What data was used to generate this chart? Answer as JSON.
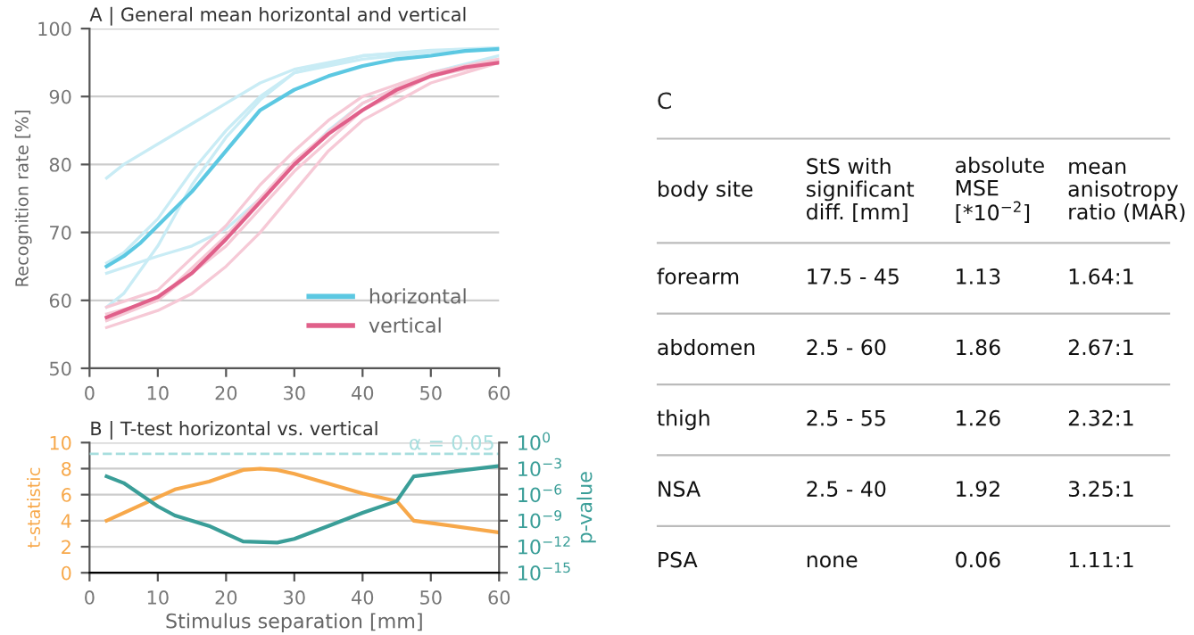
{
  "chart_data": [
    {
      "type": "line",
      "title": "A | General mean horizontal and vertical",
      "ylabel": "Recognition rate [%]",
      "xlim": [
        0,
        60
      ],
      "xticks": [
        0,
        10,
        20,
        30,
        40,
        50,
        60
      ],
      "ylim": [
        50,
        100
      ],
      "yticks": [
        50,
        60,
        70,
        80,
        90,
        100
      ],
      "grid": "y",
      "legend": "bottom right",
      "series": [
        {
          "color": "#c9ecf5",
          "x": [
            2.5,
            5,
            10,
            15,
            20,
            25,
            30,
            35,
            40,
            50,
            60
          ],
          "values": [
            78,
            80,
            83,
            86,
            89,
            92,
            94,
            95,
            96,
            96.7,
            97
          ]
        },
        {
          "color": "#c9ecf5",
          "x": [
            2.5,
            5,
            10,
            15,
            20,
            25,
            30,
            40,
            50,
            60
          ],
          "values": [
            65.5,
            67,
            72,
            79,
            85,
            90,
            93.5,
            96,
            96.8,
            97.2
          ]
        },
        {
          "color": "#c9ecf5",
          "x": [
            2.5,
            5,
            10,
            15,
            20,
            25,
            30,
            40,
            50,
            60
          ],
          "values": [
            59,
            61,
            68,
            77,
            84,
            89.5,
            93.5,
            95.5,
            96.5,
            97
          ]
        },
        {
          "color": "#c9ecf5",
          "x": [
            2.5,
            10,
            15,
            20,
            25,
            30,
            35,
            40,
            50,
            60
          ],
          "values": [
            64,
            66.5,
            68,
            70.5,
            75,
            80,
            85,
            89,
            93.5,
            96
          ]
        },
        {
          "color": "#f6c9d6",
          "x": [
            2.5,
            10,
            20,
            25,
            30,
            35,
            40,
            50,
            60
          ],
          "values": [
            59,
            61.5,
            71,
            77,
            82,
            86.5,
            90,
            93.5,
            95.5
          ]
        },
        {
          "color": "#f6c9d6",
          "x": [
            2.5,
            10,
            20,
            30,
            40,
            50,
            60
          ],
          "values": [
            58,
            60,
            68,
            79,
            88,
            93,
            95
          ]
        },
        {
          "color": "#f6c9d6",
          "x": [
            2.5,
            10,
            15,
            20,
            25,
            30,
            35,
            40,
            50,
            60
          ],
          "values": [
            56,
            58.5,
            61,
            65,
            70,
            76,
            82,
            86.5,
            92,
            95
          ]
        },
        {
          "color": "#f6c9d6",
          "x": [
            2.5,
            10,
            20,
            30,
            40,
            50,
            60
          ],
          "values": [
            57,
            60,
            69.5,
            80.5,
            89,
            93.5,
            95.5
          ]
        },
        {
          "name": "horizontal",
          "color": "#5cc8e2",
          "x": [
            2.5,
            5,
            7.5,
            10,
            15,
            20,
            25,
            30,
            35,
            40,
            45,
            50,
            55,
            60
          ],
          "values": [
            65,
            66.5,
            68.5,
            71,
            76,
            82,
            88,
            91,
            93,
            94.5,
            95.5,
            96,
            96.7,
            97
          ]
        },
        {
          "name": "vertical",
          "color": "#e0608a",
          "x": [
            2.5,
            5,
            7.5,
            10,
            15,
            20,
            25,
            30,
            35,
            40,
            45,
            50,
            55,
            60
          ],
          "values": [
            57.5,
            58.5,
            59.5,
            60.5,
            64,
            69,
            74.5,
            80,
            84.5,
            88,
            91,
            93,
            94.3,
            95
          ]
        }
      ]
    },
    {
      "type": "line",
      "title": "B | T-test horizontal vs. vertical",
      "xlabel": "Stimulus separation [mm]",
      "ylabel": "t-statistic",
      "y2label": "p-value",
      "xlim": [
        0,
        60
      ],
      "xticks": [
        0,
        10,
        20,
        30,
        40,
        50,
        60
      ],
      "ylim": [
        0,
        10
      ],
      "yticks": [
        0,
        2,
        4,
        6,
        8,
        10
      ],
      "log": "y2",
      "y2lim": [
        1e-15,
        1
      ],
      "y2ticks": [
        {
          "value": 1,
          "label": "10$^{0}$"
        },
        {
          "value": 0.001,
          "label": "10$^{−3}$"
        },
        {
          "value": 1e-06,
          "label": "10$^{−6}$"
        },
        {
          "value": 1e-09,
          "label": "10$^{−9}$"
        },
        {
          "value": 1e-12,
          "label": "10$^{−12}$"
        },
        {
          "value": 1e-15,
          "label": "10$^{−15}$"
        }
      ],
      "grid": "y",
      "ref_lines": [
        {
          "axis": "y2",
          "value": 0.05,
          "label": "α = 0.05",
          "color": "#a8dede",
          "line_style": "dashed"
        }
      ],
      "series": [
        {
          "color": "#f7a84a",
          "x": [
            2.5,
            5,
            10,
            12.5,
            17.5,
            22.5,
            25,
            27.5,
            30,
            40,
            45,
            47.5,
            60
          ],
          "values": [
            4,
            4.6,
            5.8,
            6.4,
            7,
            7.9,
            8,
            7.9,
            7.6,
            6.1,
            5.5,
            4,
            3.1
          ]
        },
        {
          "axis": "y2",
          "color": "#3a9e98",
          "x": [
            2.5,
            5,
            10,
            12.5,
            17.5,
            22.5,
            27.5,
            30,
            35,
            40,
            45,
            47.5,
            60
          ],
          "values": [
            0.00013,
            2.2e-05,
            4.5e-08,
            4e-09,
            2.5e-10,
            4e-12,
            3e-12,
            8e-12,
            2.5e-10,
            8e-09,
            1.8e-07,
            0.00013,
            0.002
          ]
        }
      ]
    },
    {
      "type": "other",
      "title": "C",
      "annotations": [
        "body site",
        "StS with\nsignificant\ndiff. [mm]",
        "absolute\nMSE\n[*10$^{−2}$]",
        "mean\nanisotropy\nratio (MAR)",
        "forearm",
        "17.5 - 45",
        "1.13",
        "1.64:1",
        "abdomen",
        "2.5 - 60",
        "1.86",
        "2.67:1",
        "thigh",
        "2.5 - 55",
        "1.26",
        "2.32:1",
        "NSA",
        "2.5 - 40",
        "1.92",
        "3.25:1",
        "PSA",
        "none",
        "0.06",
        "1.11:1"
      ]
    }
  ]
}
